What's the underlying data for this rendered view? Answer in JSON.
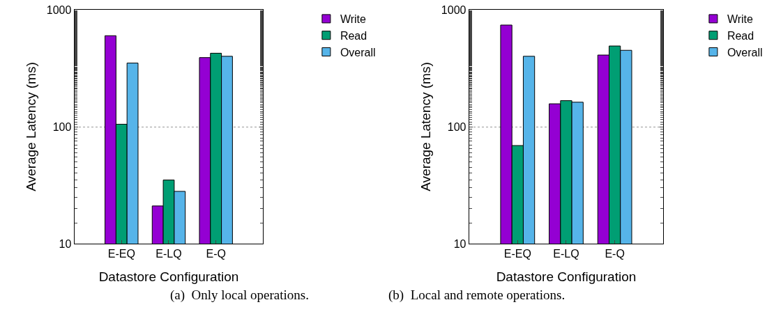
{
  "chart_data": [
    {
      "type": "bar",
      "xlabel": "Datastore Configuration",
      "ylabel": "Average Latency (ms)",
      "categories": [
        "E-EQ",
        "E-LQ",
        "E-Q"
      ],
      "series": [
        {
          "name": "Write",
          "color": "#9400d3",
          "values": [
            600,
            21,
            390
          ]
        },
        {
          "name": "Read",
          "color": "#009e73",
          "values": [
            105,
            35,
            425
          ]
        },
        {
          "name": "Overall",
          "color": "#56b4e9",
          "values": [
            350,
            28,
            400
          ]
        }
      ],
      "log": "y",
      "ylim": [
        10,
        1000
      ],
      "yticks": [
        10,
        100,
        1000
      ],
      "grid": "y",
      "legend": "top right",
      "annotations": [
        "(a)  Only local operations."
      ]
    },
    {
      "type": "bar",
      "xlabel": "Datastore Configuration",
      "ylabel": "Average Latency (ms)",
      "categories": [
        "E-EQ",
        "E-LQ",
        "E-Q"
      ],
      "series": [
        {
          "name": "Write",
          "color": "#9400d3",
          "values": [
            740,
            157,
            410
          ]
        },
        {
          "name": "Read",
          "color": "#009e73",
          "values": [
            69,
            167,
            490
          ]
        },
        {
          "name": "Overall",
          "color": "#56b4e9",
          "values": [
            400,
            162,
            450
          ]
        }
      ],
      "log": "y",
      "ylim": [
        10,
        1000
      ],
      "yticks": [
        10,
        100,
        1000
      ],
      "grid": "y",
      "legend": "top right",
      "annotations": [
        "(b)  Local and remote operations."
      ]
    }
  ]
}
